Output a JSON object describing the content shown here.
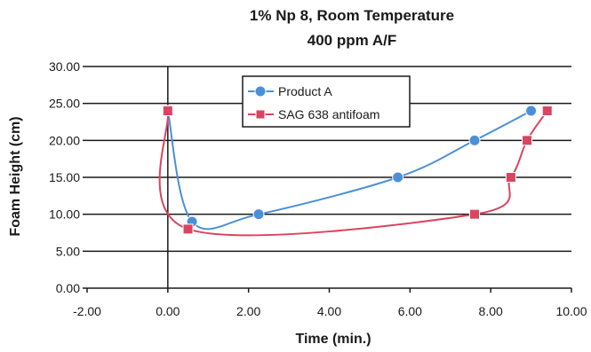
{
  "chart_data": {
    "type": "scatter",
    "title_lines": [
      "1% Np 8, Room Temperature",
      "400 ppm A/F"
    ],
    "xlabel": "Time (min.)",
    "ylabel": "Foam Height (cm)",
    "xlim": [
      -2,
      10
    ],
    "ylim": [
      0,
      30
    ],
    "x_ticks": [
      "-2.00",
      "0.00",
      "2.00",
      "4.00",
      "6.00",
      "8.00",
      "10.00"
    ],
    "y_ticks": [
      "0.00",
      "5.00",
      "10.00",
      "15.00",
      "20.00",
      "25.00",
      "30.00"
    ],
    "grid": "horizontal",
    "smooth_lines": true,
    "legend_position": "top-center",
    "series": [
      {
        "name": "Product A",
        "color": "#4a90d9",
        "marker": "circle",
        "points": [
          [
            0.0,
            24
          ],
          [
            0.6,
            9
          ],
          [
            2.25,
            10
          ],
          [
            5.7,
            15
          ],
          [
            7.6,
            20
          ],
          [
            9.0,
            24
          ]
        ]
      },
      {
        "name": "SAG 638 antifoam",
        "color": "#d9455f",
        "marker": "square",
        "points": [
          [
            0.0,
            24
          ],
          [
            0.5,
            8
          ],
          [
            7.6,
            10
          ],
          [
            8.5,
            15
          ],
          [
            8.9,
            20
          ],
          [
            9.4,
            24
          ]
        ]
      }
    ]
  }
}
